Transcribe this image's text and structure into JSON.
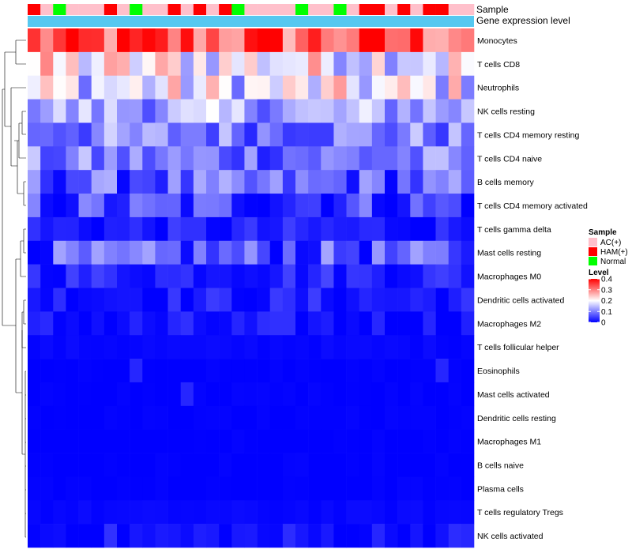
{
  "chart_data": {
    "type": "heatmap",
    "n_columns": 35,
    "annotation_rows": [
      {
        "label": "Sample"
      },
      {
        "label": "Gene expression level"
      }
    ],
    "sample_groups": [
      "AC(+)",
      "HAM(+)",
      "Normal"
    ],
    "sample_group_colors": {
      "AC(+)": "#ffc0cb",
      "HAM(+)": "#ff0000",
      "Normal": "#00ff00"
    },
    "gene_expression_color": "#56c8f0",
    "sample_assignments": [
      "HAM(+)",
      "AC(+)",
      "Normal",
      "AC(+)",
      "AC(+)",
      "AC(+)",
      "HAM(+)",
      "AC(+)",
      "Normal",
      "AC(+)",
      "AC(+)",
      "HAM(+)",
      "AC(+)",
      "HAM(+)",
      "AC(+)",
      "HAM(+)",
      "Normal",
      "AC(+)",
      "AC(+)",
      "AC(+)",
      "AC(+)",
      "Normal",
      "AC(+)",
      "AC(+)",
      "Normal",
      "AC(+)",
      "HAM(+)",
      "HAM(+)",
      "AC(+)",
      "HAM(+)",
      "AC(+)",
      "HAM(+)",
      "HAM(+)",
      "AC(+)",
      "AC(+)"
    ],
    "rows": [
      "Monocytes",
      "T cells CD8",
      "Neutrophils",
      "NK cells resting",
      "T cells CD4 memory resting",
      "T cells CD4 naive",
      "B cells memory",
      "T cells CD4 memory activated",
      "T cells gamma delta",
      "Mast cells resting",
      "Macrophages M0",
      "Dendritic cells activated",
      "Macrophages M2",
      "T cells follicular helper",
      "Eosinophils",
      "Mast cells activated",
      "Dendritic cells resting",
      "Macrophages M1",
      "B cells naive",
      "Plasma cells",
      "T cells regulatory  Tregs",
      "NK cells activated"
    ],
    "row_means": [
      0.33,
      0.2,
      0.18,
      0.13,
      0.1,
      0.09,
      0.07,
      0.05,
      0.02,
      0.06,
      0.03,
      0.02,
      0.01,
      0.005,
      0,
      0,
      0,
      0,
      0,
      0,
      0.005,
      0.01
    ],
    "color_scale": {
      "legend_title": "Level",
      "min": 0,
      "max": 0.4,
      "ticks": [
        0,
        0.1,
        0.2,
        0.3,
        0.4
      ],
      "low_color": "#0000ff",
      "mid_color": "#ffffff",
      "high_color": "#ff0000",
      "mid_value": 0.2
    },
    "legend": {
      "sample_title": "Sample",
      "sample_entries": [
        "AC(+)",
        "HAM(+)",
        "Normal"
      ],
      "level_title": "Level",
      "level_ticks": [
        "0.4",
        "0.3",
        "0.2",
        "0.1",
        "0"
      ]
    }
  }
}
